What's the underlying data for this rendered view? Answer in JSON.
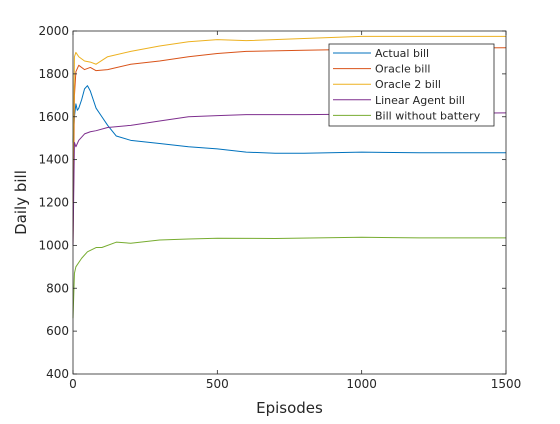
{
  "chart_data": {
    "type": "line",
    "title": "",
    "xlabel": "Episodes",
    "ylabel": "Daily bill",
    "xlim": [
      0,
      1500
    ],
    "ylim": [
      400,
      2000
    ],
    "xticks": [
      0,
      500,
      1000,
      1500
    ],
    "yticks": [
      400,
      600,
      800,
      1000,
      1200,
      1400,
      1600,
      1800,
      2000
    ],
    "grid": false,
    "legend": "top-right",
    "series": [
      {
        "name": "Actual bill",
        "color": "#0072bd",
        "points": [
          [
            0,
            1480
          ],
          [
            5,
            1600
          ],
          [
            10,
            1660
          ],
          [
            15,
            1630
          ],
          [
            20,
            1640
          ],
          [
            30,
            1680
          ],
          [
            40,
            1730
          ],
          [
            50,
            1745
          ],
          [
            60,
            1720
          ],
          [
            70,
            1680
          ],
          [
            80,
            1640
          ],
          [
            100,
            1600
          ],
          [
            120,
            1560
          ],
          [
            150,
            1510
          ],
          [
            200,
            1490
          ],
          [
            300,
            1475
          ],
          [
            400,
            1460
          ],
          [
            500,
            1450
          ],
          [
            600,
            1435
          ],
          [
            700,
            1430
          ],
          [
            800,
            1430
          ],
          [
            1000,
            1435
          ],
          [
            1200,
            1432
          ],
          [
            1500,
            1432
          ]
        ]
      },
      {
        "name": "Oracle bill",
        "color": "#d95319",
        "points": [
          [
            0,
            1000
          ],
          [
            5,
            1700
          ],
          [
            10,
            1810
          ],
          [
            20,
            1840
          ],
          [
            40,
            1820
          ],
          [
            60,
            1830
          ],
          [
            80,
            1815
          ],
          [
            120,
            1820
          ],
          [
            200,
            1845
          ],
          [
            300,
            1860
          ],
          [
            400,
            1880
          ],
          [
            500,
            1895
          ],
          [
            600,
            1905
          ],
          [
            800,
            1910
          ],
          [
            1000,
            1915
          ],
          [
            1200,
            1920
          ],
          [
            1500,
            1922
          ]
        ]
      },
      {
        "name": "Oracle 2 bill",
        "color": "#edb120",
        "points": [
          [
            0,
            1200
          ],
          [
            5,
            1880
          ],
          [
            10,
            1900
          ],
          [
            20,
            1880
          ],
          [
            40,
            1860
          ],
          [
            60,
            1855
          ],
          [
            80,
            1845
          ],
          [
            120,
            1880
          ],
          [
            200,
            1905
          ],
          [
            300,
            1930
          ],
          [
            400,
            1950
          ],
          [
            500,
            1960
          ],
          [
            600,
            1955
          ],
          [
            800,
            1965
          ],
          [
            1000,
            1975
          ],
          [
            1200,
            1975
          ],
          [
            1500,
            1975
          ]
        ]
      },
      {
        "name": "Linear Agent bill",
        "color": "#7e2f8e",
        "points": [
          [
            0,
            1000
          ],
          [
            5,
            1480
          ],
          [
            10,
            1460
          ],
          [
            20,
            1490
          ],
          [
            40,
            1520
          ],
          [
            60,
            1530
          ],
          [
            80,
            1535
          ],
          [
            120,
            1550
          ],
          [
            200,
            1560
          ],
          [
            300,
            1580
          ],
          [
            400,
            1600
          ],
          [
            500,
            1605
          ],
          [
            600,
            1610
          ],
          [
            800,
            1610
          ],
          [
            1000,
            1612
          ],
          [
            1200,
            1615
          ],
          [
            1500,
            1618
          ]
        ]
      },
      {
        "name": "Bill without battery",
        "color": "#77ac30",
        "points": [
          [
            0,
            660
          ],
          [
            5,
            870
          ],
          [
            10,
            900
          ],
          [
            20,
            920
          ],
          [
            30,
            940
          ],
          [
            50,
            970
          ],
          [
            80,
            990
          ],
          [
            100,
            990
          ],
          [
            150,
            1015
          ],
          [
            200,
            1010
          ],
          [
            300,
            1025
          ],
          [
            400,
            1030
          ],
          [
            500,
            1033
          ],
          [
            700,
            1032
          ],
          [
            1000,
            1038
          ],
          [
            1200,
            1035
          ],
          [
            1500,
            1035
          ]
        ]
      }
    ]
  }
}
